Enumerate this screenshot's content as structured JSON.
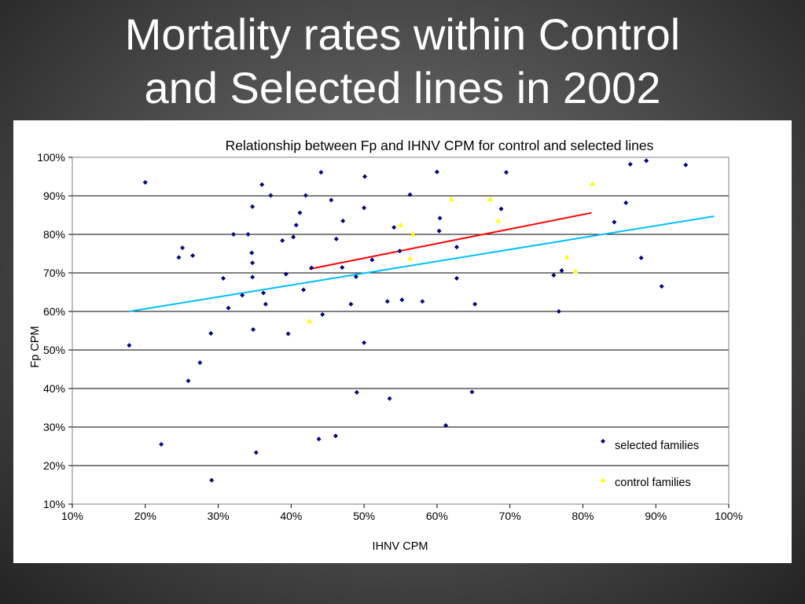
{
  "slide": {
    "title_line1": "Mortality rates within Control",
    "title_line2": "and Selected lines in 2002"
  },
  "colors": {
    "selected": "#000080",
    "control": "#FFFF00",
    "trend_selected": "#00BFFF",
    "trend_control": "#FF0000",
    "gridline": "#000000"
  },
  "chart_data": {
    "type": "scatter",
    "title": "Relationship between Fp and IHNV CPM for control and selected lines",
    "xlabel": "IHNV CPM",
    "ylabel": "Fp CPM",
    "xlim": [
      0.1,
      1.0
    ],
    "ylim": [
      0.1,
      1.0
    ],
    "x_ticks": [
      0.1,
      0.2,
      0.3,
      0.4,
      0.5,
      0.6,
      0.7,
      0.8,
      0.9,
      1.0
    ],
    "y_ticks": [
      0.1,
      0.2,
      0.3,
      0.4,
      0.5,
      0.6,
      0.7,
      0.8,
      0.9,
      1.0
    ],
    "x_tick_labels": [
      "10%",
      "20%",
      "30%",
      "40%",
      "50%",
      "60%",
      "70%",
      "80%",
      "90%",
      "100%"
    ],
    "y_tick_labels": [
      "10%",
      "20%",
      "30%",
      "40%",
      "50%",
      "60%",
      "70%",
      "80%",
      "90%",
      "100%"
    ],
    "grid": "horizontal",
    "legend_position": "bottom-right",
    "series": [
      {
        "name": "selected families",
        "marker": "diamond",
        "color": "#000080",
        "points": [
          [
            0.178,
            0.512
          ],
          [
            0.2,
            0.935
          ],
          [
            0.222,
            0.255
          ],
          [
            0.246,
            0.74
          ],
          [
            0.251,
            0.765
          ],
          [
            0.259,
            0.42
          ],
          [
            0.265,
            0.745
          ],
          [
            0.275,
            0.467
          ],
          [
            0.29,
            0.543
          ],
          [
            0.291,
            0.162
          ],
          [
            0.307,
            0.686
          ],
          [
            0.314,
            0.609
          ],
          [
            0.321,
            0.8
          ],
          [
            0.333,
            0.642
          ],
          [
            0.341,
            0.8
          ],
          [
            0.346,
            0.752
          ],
          [
            0.347,
            0.872
          ],
          [
            0.347,
            0.726
          ],
          [
            0.347,
            0.689
          ],
          [
            0.348,
            0.553
          ],
          [
            0.352,
            0.234
          ],
          [
            0.36,
            0.929
          ],
          [
            0.362,
            0.648
          ],
          [
            0.365,
            0.619
          ],
          [
            0.372,
            0.901
          ],
          [
            0.388,
            0.784
          ],
          [
            0.393,
            0.697
          ],
          [
            0.396,
            0.542
          ],
          [
            0.403,
            0.793
          ],
          [
            0.407,
            0.824
          ],
          [
            0.412,
            0.856
          ],
          [
            0.417,
            0.656
          ],
          [
            0.42,
            0.901
          ],
          [
            0.428,
            0.713
          ],
          [
            0.438,
            0.269
          ],
          [
            0.441,
            0.961
          ],
          [
            0.443,
            0.592
          ],
          [
            0.455,
            0.889
          ],
          [
            0.461,
            0.277
          ],
          [
            0.462,
            0.788
          ],
          [
            0.47,
            0.714
          ],
          [
            0.471,
            0.835
          ],
          [
            0.482,
            0.619
          ],
          [
            0.489,
            0.69
          ],
          [
            0.49,
            0.39
          ],
          [
            0.5,
            0.519
          ],
          [
            0.5,
            0.869
          ],
          [
            0.501,
            0.95
          ],
          [
            0.511,
            0.734
          ],
          [
            0.532,
            0.626
          ],
          [
            0.535,
            0.374
          ],
          [
            0.541,
            0.818
          ],
          [
            0.549,
            0.757
          ],
          [
            0.552,
            0.63
          ],
          [
            0.563,
            0.903
          ],
          [
            0.58,
            0.626
          ],
          [
            0.6,
            0.962
          ],
          [
            0.603,
            0.809
          ],
          [
            0.604,
            0.842
          ],
          [
            0.612,
            0.304
          ],
          [
            0.627,
            0.767
          ],
          [
            0.627,
            0.686
          ],
          [
            0.648,
            0.391
          ],
          [
            0.652,
            0.619
          ],
          [
            0.688,
            0.866
          ],
          [
            0.695,
            0.961
          ],
          [
            0.76,
            0.694
          ],
          [
            0.767,
            0.6
          ],
          [
            0.771,
            0.706
          ],
          [
            0.843,
            0.832
          ],
          [
            0.859,
            0.882
          ],
          [
            0.865,
            0.982
          ],
          [
            0.88,
            0.739
          ],
          [
            0.887,
            0.991
          ],
          [
            0.908,
            0.665
          ],
          [
            0.941,
            0.98
          ]
        ]
      },
      {
        "name": "control families",
        "marker": "triangle",
        "color": "#FFFF00",
        "points": [
          [
            0.425,
            0.575
          ],
          [
            0.55,
            0.824
          ],
          [
            0.563,
            0.737
          ],
          [
            0.567,
            0.8
          ],
          [
            0.62,
            0.891
          ],
          [
            0.673,
            0.891
          ],
          [
            0.684,
            0.835
          ],
          [
            0.778,
            0.741
          ],
          [
            0.79,
            0.704
          ],
          [
            0.813,
            0.931
          ]
        ]
      }
    ],
    "trendlines": [
      {
        "series": "selected families",
        "color": "#00BFFF",
        "points": [
          [
            0.178,
            0.6
          ],
          [
            0.98,
            0.847
          ]
        ]
      },
      {
        "series": "control families",
        "color": "#FF0000",
        "points": [
          [
            0.425,
            0.71
          ],
          [
            0.812,
            0.856
          ]
        ]
      }
    ]
  }
}
